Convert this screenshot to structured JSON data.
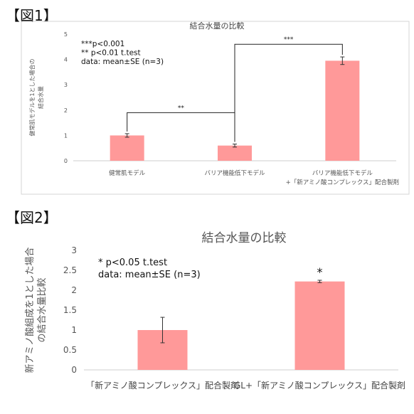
{
  "figure_labels": {
    "fig1": "【図1】",
    "fig2": "【図2】"
  },
  "chart_data": [
    {
      "type": "bar",
      "title": "結合水量の比較",
      "ylabel_lines": [
        "健常肌モデルを1とした場合の",
        "結合水量"
      ],
      "categories": [
        [
          "健常肌モデル"
        ],
        [
          "バリア機能低下モデル"
        ],
        [
          "バリア機能低下モデル",
          "+「新アミノ酸コンプレックス」配合製剤"
        ]
      ],
      "values": [
        1.0,
        0.6,
        3.95
      ],
      "errors": [
        0.07,
        0.06,
        0.15
      ],
      "ylim": [
        0,
        5
      ],
      "yticks": [
        "0",
        "1",
        "2",
        "3",
        "4",
        "5"
      ],
      "notes": [
        "***p<0.001",
        "** p<0.01  t.test",
        "data: mean±SE (n=3)"
      ],
      "significance": [
        {
          "from": 0,
          "to": 1,
          "label": "**",
          "y": 1.9
        },
        {
          "from": 1,
          "to": 2,
          "label": "***",
          "y": 4.6
        }
      ],
      "bar_color": "#ff9999"
    },
    {
      "type": "bar",
      "title": "結合水量の比較",
      "ylabel_lines": [
        "新アミノ酸組成を1とした場合",
        "の結合水量比較"
      ],
      "categories": [
        [
          "「新アミノ酸コンプレックス」配合製剤"
        ],
        [
          "GL+「新アミノ酸コンプレックス」配合製剤"
        ]
      ],
      "values": [
        1.0,
        2.22
      ],
      "errors": [
        0.32,
        0.03
      ],
      "ylim": [
        0,
        3
      ],
      "yticks": [
        "0",
        "0.5",
        "1",
        "1.5",
        "2",
        "2.5",
        "3"
      ],
      "notes": [
        "* p<0.05  t.test",
        "data: mean±SE (n=3)"
      ],
      "star_labels": [
        "",
        "*"
      ],
      "bar_color": "#ff9999"
    }
  ]
}
